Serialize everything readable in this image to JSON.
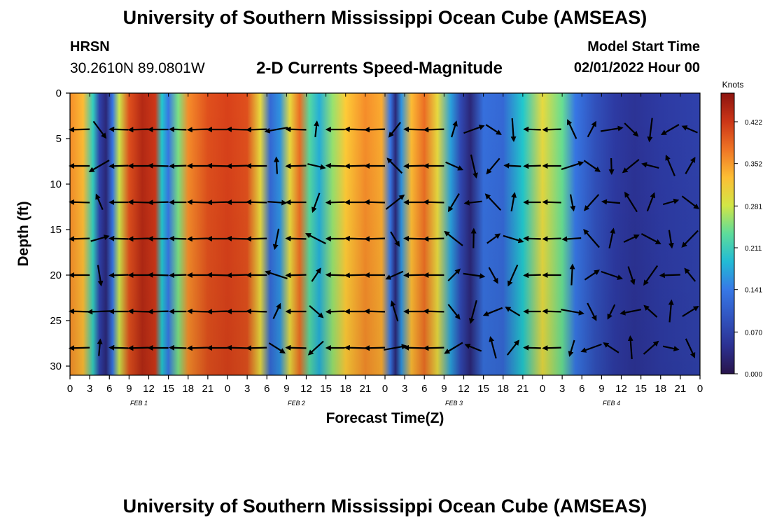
{
  "header": {
    "title": "University of Southern Mississippi Ocean Cube (AMSEAS)",
    "station": "HRSN",
    "coords": "30.2610N  89.0801W",
    "subtitle": "2-D Currents Speed-Magnitude",
    "model_start_label": "Model Start Time",
    "model_start_value": "02/01/2022 Hour 00"
  },
  "footer": {
    "title": "University of Southern Mississippi Ocean Cube (AMSEAS)"
  },
  "chart_data": {
    "type": "heatmap",
    "title": "2-D Currents Speed-Magnitude",
    "xlabel": "Forecast Time(Z)",
    "ylabel": "Depth (ft)",
    "x_range_hours": [
      0,
      96
    ],
    "x_tick_step_hours": 3,
    "x_tick_labels": [
      "0",
      "3",
      "6",
      "9",
      "12",
      "15",
      "18",
      "21",
      "0",
      "3",
      "6",
      "9",
      "12",
      "15",
      "18",
      "21",
      "0",
      "3",
      "6",
      "9",
      "12",
      "15",
      "18",
      "21",
      "0",
      "3",
      "6",
      "9",
      "12",
      "15",
      "18",
      "21",
      "0"
    ],
    "date_labels": [
      {
        "label": "FEB 1",
        "hour": 12
      },
      {
        "label": "FEB 2",
        "hour": 36
      },
      {
        "label": "FEB 3",
        "hour": 60
      },
      {
        "label": "FEB 4",
        "hour": 84
      }
    ],
    "y_range_ft": [
      0,
      31
    ],
    "y_inverted": true,
    "y_ticks": [
      0,
      5,
      10,
      15,
      20,
      25,
      30
    ],
    "colorbar": {
      "unit": "Knots",
      "min": 0.0,
      "max": 0.47,
      "tick_labels": [
        "0.000",
        "0.070",
        "0.141",
        "0.211",
        "0.281",
        "0.352",
        "0.422"
      ],
      "tick_values": [
        0.0,
        0.07,
        0.141,
        0.211,
        0.281,
        0.352,
        0.422
      ]
    },
    "speed_profile_surface": [
      {
        "hour": 0,
        "knots": 0.36
      },
      {
        "hour": 2,
        "knots": 0.33
      },
      {
        "hour": 3.5,
        "knots": 0.21
      },
      {
        "hour": 4.5,
        "knots": 0.07
      },
      {
        "hour": 5.5,
        "knots": 0.03
      },
      {
        "hour": 6.5,
        "knots": 0.14
      },
      {
        "hour": 7.5,
        "knots": 0.28
      },
      {
        "hour": 9,
        "knots": 0.4
      },
      {
        "hour": 11,
        "knots": 0.44
      },
      {
        "hour": 13,
        "knots": 0.42
      },
      {
        "hour": 14,
        "knots": 0.2
      },
      {
        "hour": 15,
        "knots": 0.14
      },
      {
        "hour": 16.5,
        "knots": 0.25
      },
      {
        "hour": 18,
        "knots": 0.36
      },
      {
        "hour": 21,
        "knots": 0.4
      },
      {
        "hour": 24,
        "knots": 0.41
      },
      {
        "hour": 27,
        "knots": 0.4
      },
      {
        "hour": 29,
        "knots": 0.3
      },
      {
        "hour": 30.5,
        "knots": 0.12
      },
      {
        "hour": 32,
        "knots": 0.16
      },
      {
        "hour": 33.5,
        "knots": 0.3
      },
      {
        "hour": 35,
        "knots": 0.38
      },
      {
        "hour": 36.5,
        "knots": 0.23
      },
      {
        "hour": 38,
        "knots": 0.18
      },
      {
        "hour": 40,
        "knots": 0.26
      },
      {
        "hour": 42,
        "knots": 0.32
      },
      {
        "hour": 45,
        "knots": 0.36
      },
      {
        "hour": 47.5,
        "knots": 0.34
      },
      {
        "hour": 48.8,
        "knots": 0.14
      },
      {
        "hour": 49.6,
        "knots": 0.03
      },
      {
        "hour": 50.5,
        "knots": 0.16
      },
      {
        "hour": 52,
        "knots": 0.33
      },
      {
        "hour": 54,
        "knots": 0.38
      },
      {
        "hour": 56,
        "knots": 0.3
      },
      {
        "hour": 58,
        "knots": 0.17
      },
      {
        "hour": 59.5,
        "knots": 0.08
      },
      {
        "hour": 61,
        "knots": 0.03
      },
      {
        "hour": 63,
        "knots": 0.13
      },
      {
        "hour": 66,
        "knots": 0.12
      },
      {
        "hour": 69,
        "knots": 0.2
      },
      {
        "hour": 72,
        "knots": 0.3
      },
      {
        "hour": 75,
        "knots": 0.24
      },
      {
        "hour": 77,
        "knots": 0.14
      },
      {
        "hour": 80,
        "knots": 0.09
      },
      {
        "hour": 83,
        "knots": 0.06
      },
      {
        "hour": 86,
        "knots": 0.05
      },
      {
        "hour": 90,
        "knots": 0.06
      },
      {
        "hour": 96,
        "knots": 0.07
      }
    ],
    "arrow_depths_ft": [
      4,
      8,
      12,
      16,
      20,
      24,
      28
    ],
    "arrow_hours": [
      0,
      3,
      6,
      9,
      12,
      15,
      18,
      21,
      24,
      27,
      30,
      33,
      36,
      39,
      42,
      45,
      48,
      51,
      54,
      57,
      60,
      63,
      66,
      69,
      72,
      75,
      78,
      81,
      84,
      87,
      90,
      93
    ]
  }
}
